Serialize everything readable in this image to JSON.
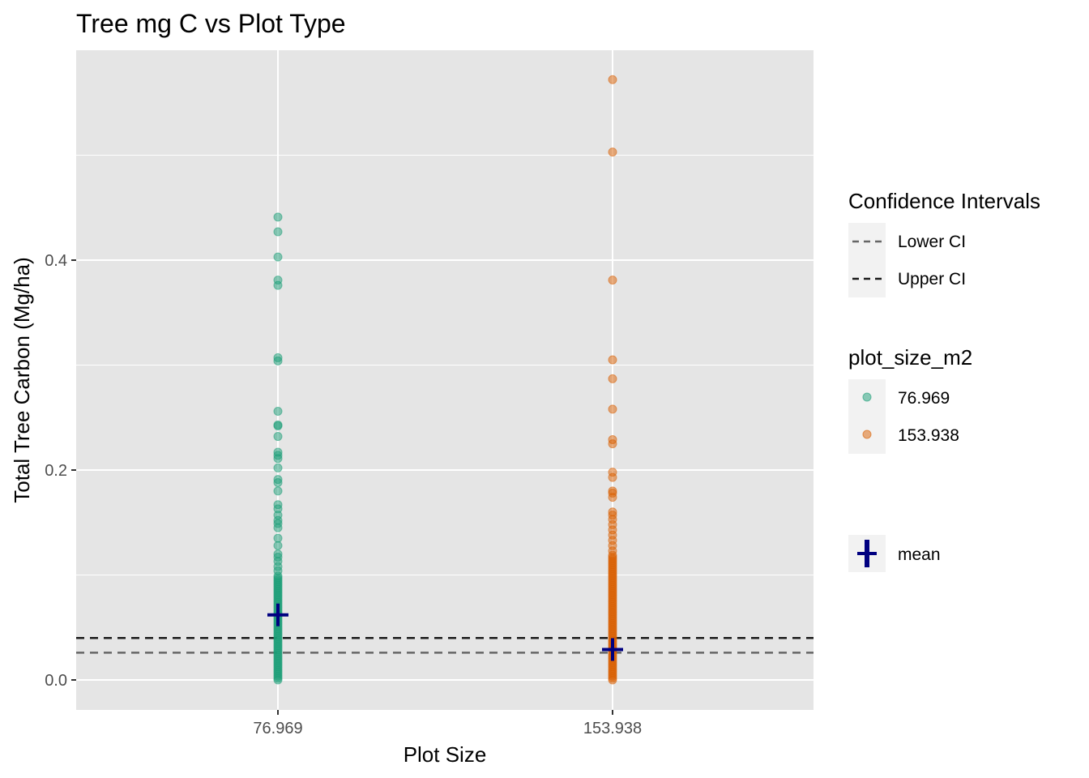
{
  "chart_data": {
    "type": "scatter",
    "title": "Tree mg C vs Plot Type",
    "xlabel": "Plot Size",
    "ylabel": "Total Tree Carbon (Mg/ha)",
    "categories": [
      "76.969",
      "153.938"
    ],
    "ylim": [
      -0.028,
      0.6
    ],
    "yticks": [
      0.0,
      0.2,
      0.4
    ],
    "ytick_labels": [
      "0.0",
      "0.2",
      "0.4"
    ],
    "grid": true,
    "background": "#e5e5e5",
    "series": [
      {
        "name": "76.969",
        "color": "#1b9e77",
        "sparse_values": [
          0.441,
          0.427,
          0.403,
          0.381,
          0.376,
          0.307,
          0.304,
          0.256,
          0.243,
          0.242,
          0.232,
          0.217,
          0.214,
          0.211,
          0.202,
          0.191,
          0.188,
          0.18,
          0.167,
          0.163,
          0.157,
          0.152,
          0.149,
          0.145,
          0.135,
          0.128,
          0.12,
          0.117,
          0.113,
          0.108,
          0.104
        ],
        "dense_range": [
          0.0,
          0.1
        ],
        "mean": 0.062
      },
      {
        "name": "153.938",
        "color": "#d95f02",
        "sparse_values": [
          0.572,
          0.503,
          0.381,
          0.305,
          0.287,
          0.258,
          0.229,
          0.225,
          0.198,
          0.193,
          0.18,
          0.178,
          0.174,
          0.16,
          0.157,
          0.153,
          0.148,
          0.143,
          0.138,
          0.133,
          0.128,
          0.123
        ],
        "dense_range": [
          0.0,
          0.12
        ],
        "mean": 0.029
      }
    ],
    "hlines": [
      {
        "name": "Lower CI",
        "y": 0.026,
        "color": "#666666"
      },
      {
        "name": "Upper CI",
        "y": 0.04,
        "color": "#1a1a1a"
      }
    ],
    "mean_color": "#000080",
    "legend": {
      "placement": "right",
      "ci_title": "Confidence Intervals",
      "ci_items": [
        "Lower CI",
        "Upper CI"
      ],
      "size_title": "plot_size_m2",
      "size_items": [
        "76.969",
        "153.938"
      ],
      "mean_label": "mean"
    }
  }
}
